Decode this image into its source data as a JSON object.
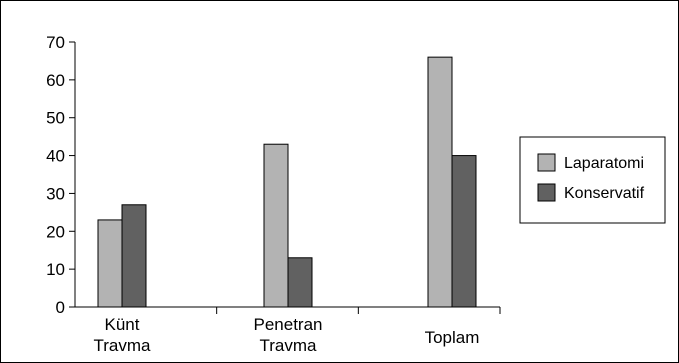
{
  "chart_data": {
    "type": "bar",
    "categories": [
      [
        "Künt",
        "Travma"
      ],
      [
        "Penetran",
        "Travma"
      ],
      [
        "Toplam"
      ]
    ],
    "series": [
      {
        "name": "Laparatomi",
        "values": [
          23,
          43,
          66
        ],
        "color": "#b3b3b3"
      },
      {
        "name": "Konservatif",
        "values": [
          27,
          13,
          40
        ],
        "color": "#616161"
      }
    ],
    "ylim": [
      0,
      70
    ],
    "yticks": [
      0,
      10,
      20,
      30,
      40,
      50,
      60,
      70
    ],
    "grid": false,
    "legend": "right"
  }
}
